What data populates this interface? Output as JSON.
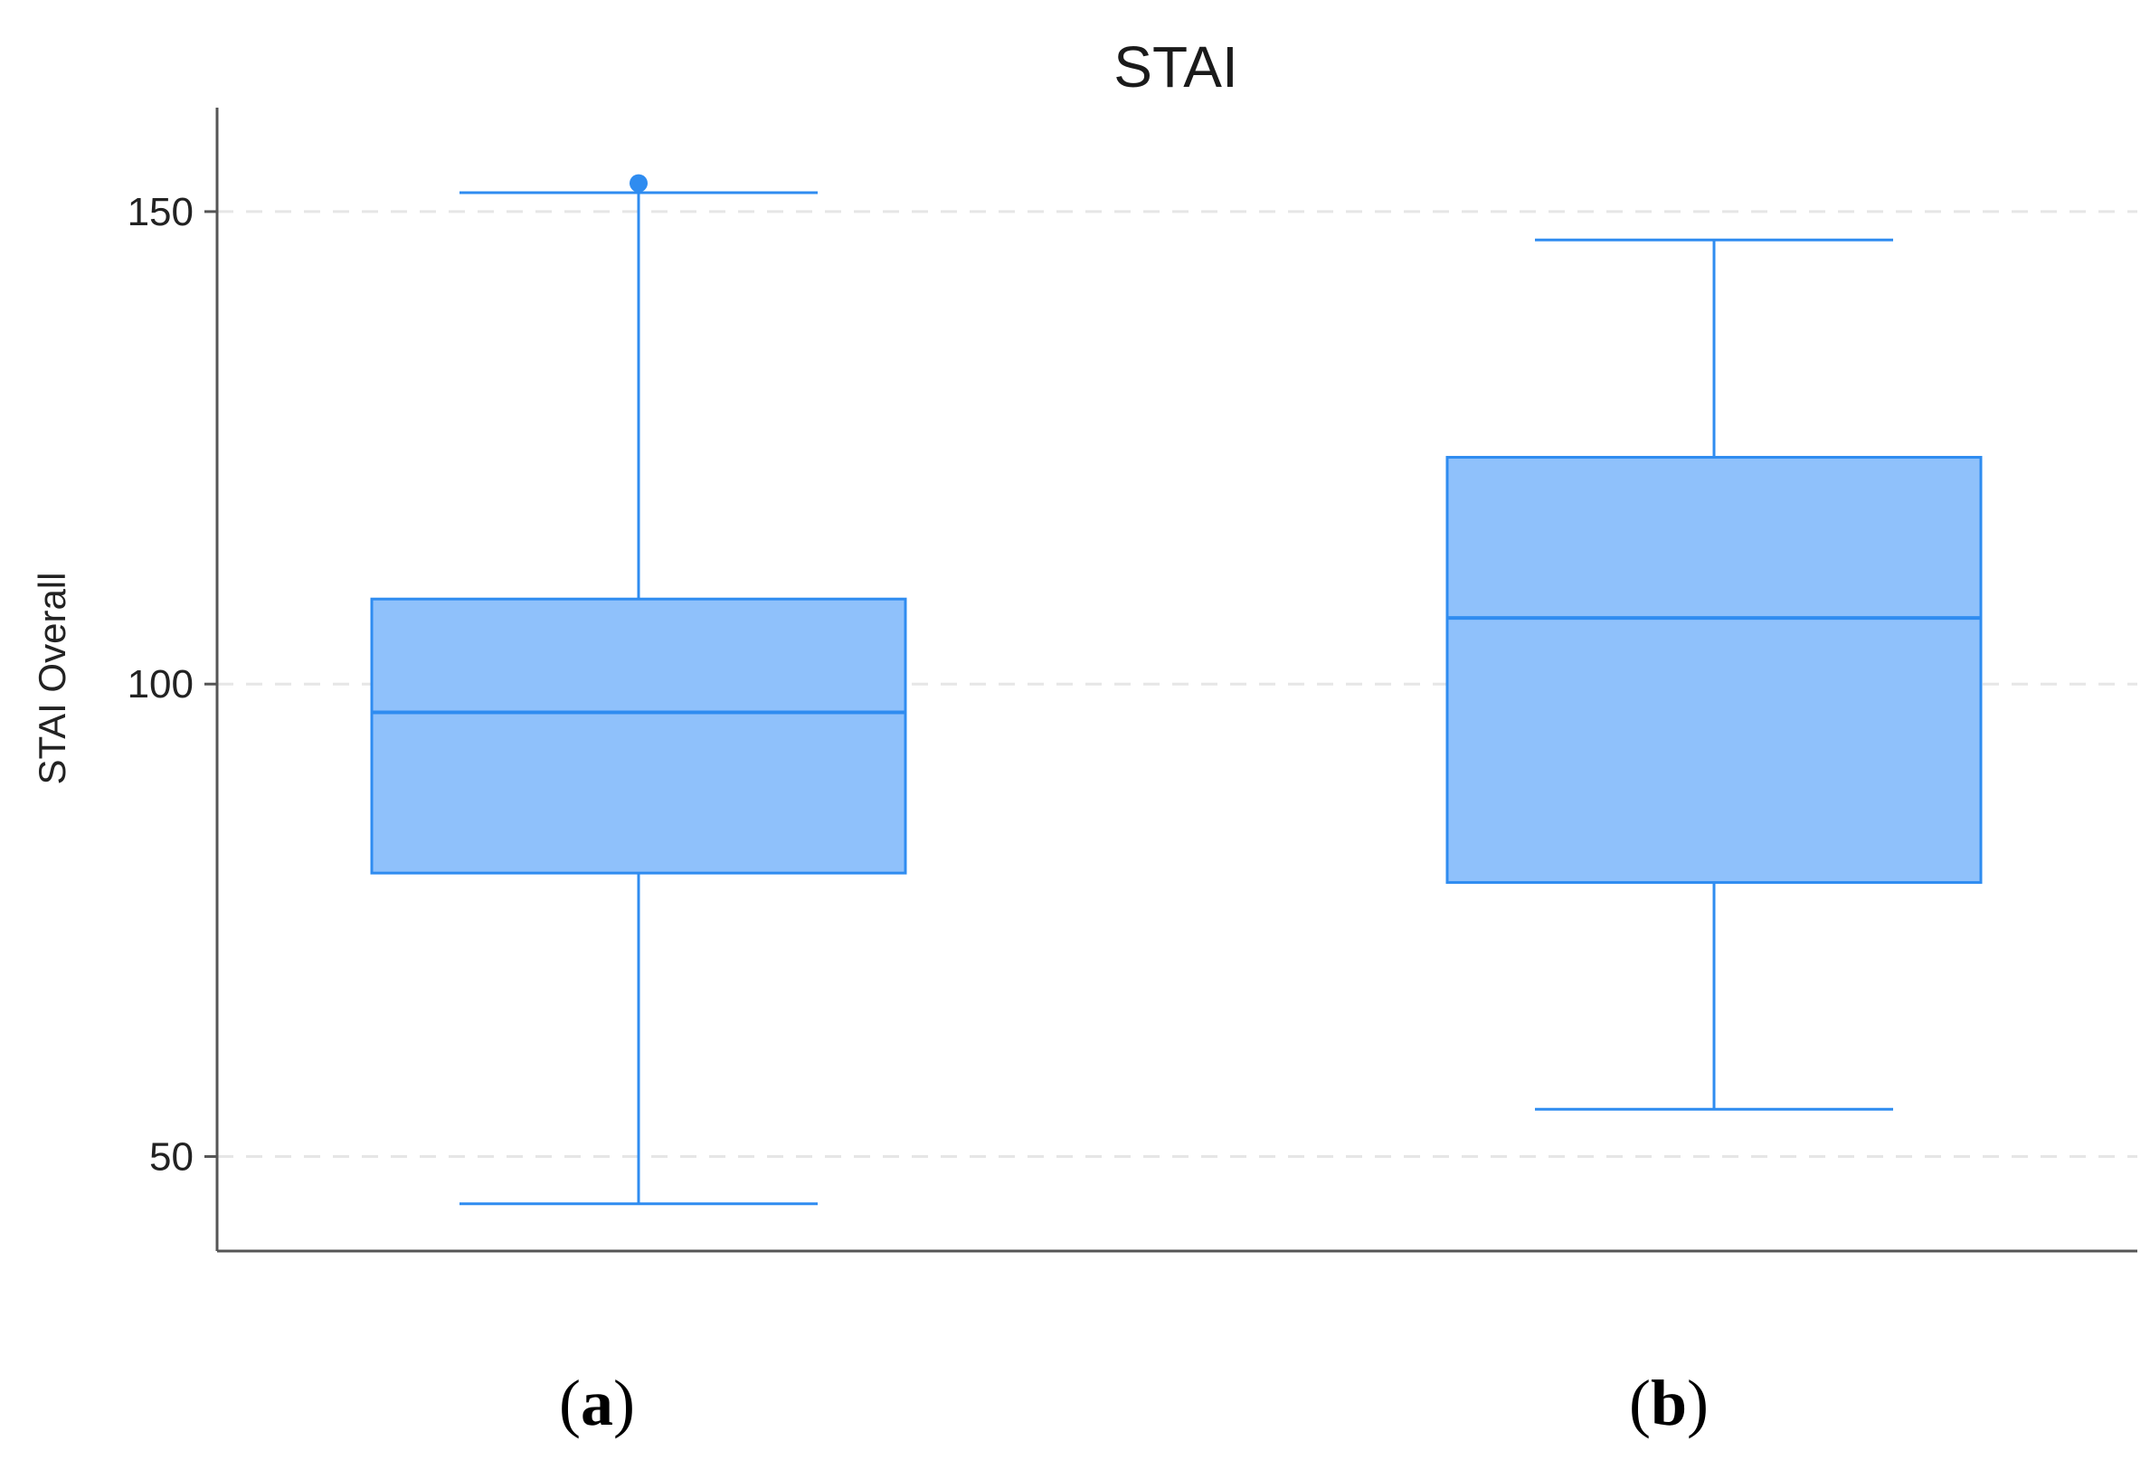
{
  "chart_data": {
    "type": "box",
    "title": "STAI",
    "xlabel": "",
    "ylabel": "STAI Overall",
    "ylim": [
      40,
      161
    ],
    "yticks": [
      50,
      100,
      150
    ],
    "grid": "horizontal-dashed",
    "box_color": "#2f8cf0",
    "box_fill": "#8fc1fb",
    "gridline_color": "#e6e6e6",
    "categories": [
      "a",
      "b"
    ],
    "panel_labels": [
      {
        "open": "(",
        "letter": "a",
        "close": ")"
      },
      {
        "open": "(",
        "letter": "b",
        "close": ")"
      }
    ],
    "boxes": [
      {
        "category": "a",
        "whisker_low": 45,
        "q1": 80,
        "median": 97,
        "q3": 109,
        "whisker_high": 152,
        "outliers": [
          153
        ]
      },
      {
        "category": "b",
        "whisker_low": 55,
        "q1": 79,
        "median": 107,
        "q3": 124,
        "whisker_high": 147,
        "outliers": []
      }
    ]
  }
}
